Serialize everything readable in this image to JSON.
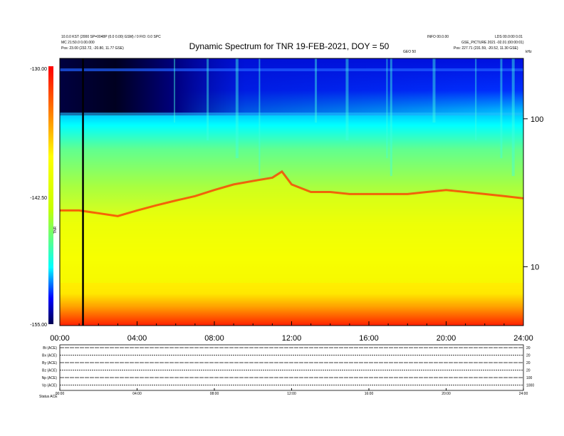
{
  "header": {
    "title": "Dynamic Spectrum for TNR 19-FEB-2021, DOY = 50",
    "left_line1": "10.0.0 KST (2000 SP=0048P (0.0 0.00) GSM) / 0 FIO: 0.0 SPC",
    "left_line2": "MC 21:50.0 0.00.000",
    "left_line3": "Pos:    23.00 (232.72, -20.80, 11.77 GSE)",
    "right_line1": "INFO 00.0.00",
    "right_line2": "LDS 00.0:00 0.01",
    "right_line3": "GSE_PICTURE 2021 -02.01 (00:00:01)",
    "right_line4": "Pos:    227.71 (231.59, -20.52, 11.30 GSE)",
    "mid_label": "GEO 50",
    "corner_label": "kHz"
  },
  "colorbar": {
    "labels": [
      "-130.00",
      "-142.50",
      "-155.00"
    ],
    "unit": "TNR"
  },
  "stack_labels": [
    "Bt (ACE)",
    "Bx (ACE)",
    "By (ACE)",
    "Bz (ACE)",
    "Np (ACE)",
    "Vp (ACE)"
  ],
  "stack_right_labels": [
    "20",
    "20",
    "20",
    "20",
    "100",
    "1000"
  ],
  "stack_footer": "Status    ACE",
  "chart_data": {
    "type": "heatmap",
    "title": "Dynamic Spectrum for TNR 19-FEB-2021, DOY = 50",
    "xlabel": "",
    "ylabel": "",
    "x_ticks": [
      "00:00",
      "04:00",
      "08:00",
      "12:00",
      "16:00",
      "20:00",
      "24:00"
    ],
    "x_range_hours": [
      0,
      24
    ],
    "y_scale": "log",
    "y_ticks": [
      "100",
      "10"
    ],
    "y_tick_values_khz": [
      100,
      10
    ],
    "y_range_khz": [
      4,
      256
    ],
    "color_range": [
      -155.0,
      -130.0
    ],
    "colormap": [
      "#000050",
      "#0000e0",
      "#00ffff",
      "#c8ff00",
      "#ffff00",
      "#ff0000"
    ],
    "plasma_line_khz": {
      "hours": [
        0,
        1,
        2,
        3,
        4,
        5,
        6,
        7,
        8,
        9,
        10,
        11,
        11.5,
        12,
        13,
        14,
        15,
        16,
        17,
        18,
        19,
        20,
        21,
        22,
        23,
        24
      ],
      "values": [
        24,
        24,
        23,
        22,
        24,
        26,
        28,
        30,
        33,
        36,
        38,
        40,
        44,
        36,
        32,
        32,
        31,
        31,
        31,
        31,
        32,
        33,
        32,
        31,
        30,
        29
      ]
    },
    "vertical_marker_hours": 1.2
  }
}
